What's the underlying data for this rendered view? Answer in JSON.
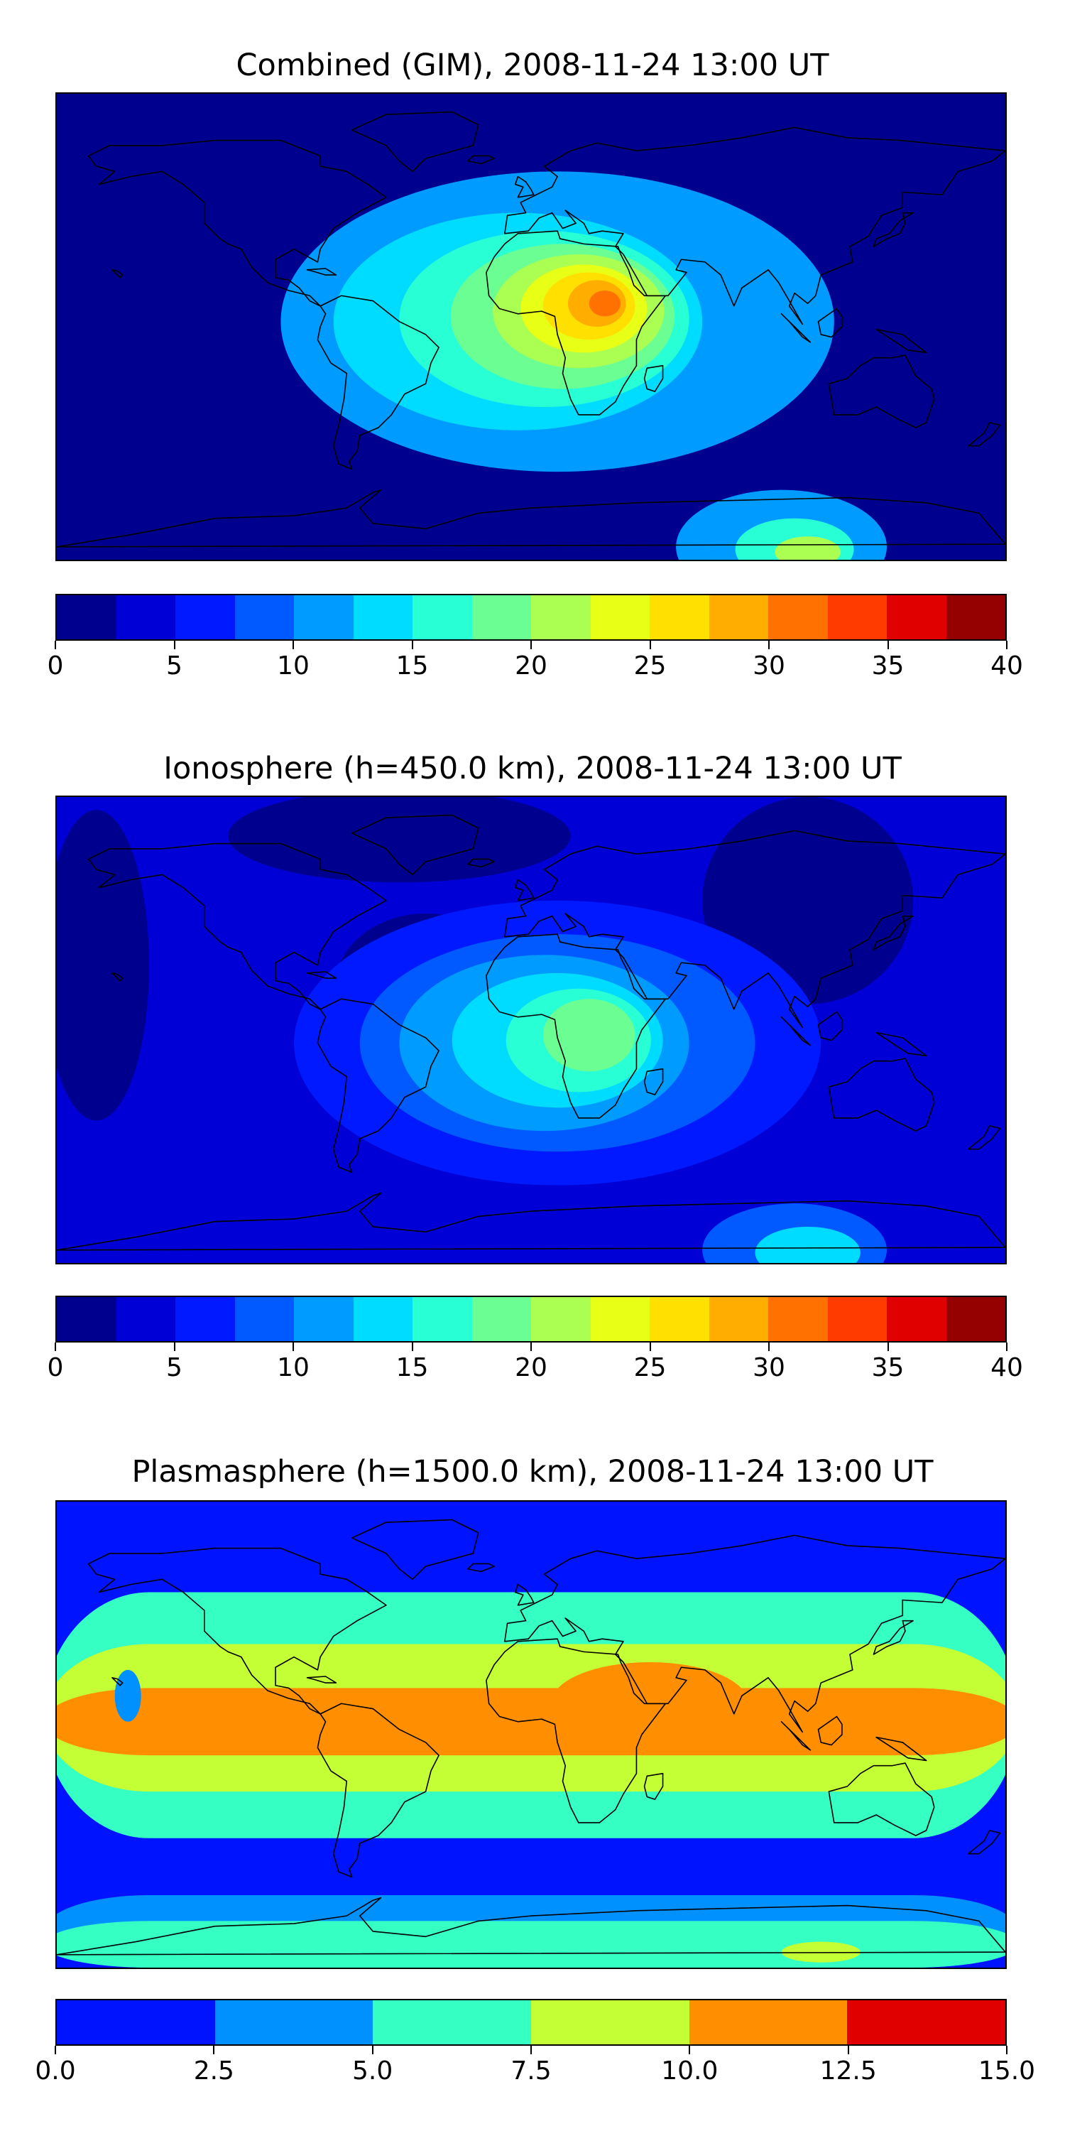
{
  "figure": {
    "panels": [
      {
        "title": "Combined (GIM), 2008-11-24 13:00 UT",
        "colorbar": {
          "levels": [
            0,
            2.5,
            5,
            7.5,
            10,
            12.5,
            15,
            17.5,
            20,
            22.5,
            25,
            27.5,
            30,
            32.5,
            35,
            37.5,
            40
          ],
          "colors": [
            "#00008f",
            "#0000d6",
            "#0019ff",
            "#005aff",
            "#009bff",
            "#00dcff",
            "#28ffd5",
            "#6bff93",
            "#abff52",
            "#e8ff16",
            "#ffe000",
            "#ffae00",
            "#ff7100",
            "#ff3b00",
            "#e10000",
            "#950000"
          ],
          "ticks": [
            "0",
            "5",
            "10",
            "15",
            "20",
            "25",
            "30",
            "35",
            "40"
          ]
        }
      },
      {
        "title": "Ionosphere  (h=450.0 km), 2008-11-24 13:00 UT",
        "colorbar": {
          "levels": [
            0,
            2.5,
            5,
            7.5,
            10,
            12.5,
            15,
            17.5,
            20,
            22.5,
            25,
            27.5,
            30,
            32.5,
            35,
            37.5,
            40
          ],
          "colors": [
            "#00008f",
            "#0000d6",
            "#0019ff",
            "#005aff",
            "#009bff",
            "#00dcff",
            "#28ffd5",
            "#6bff93",
            "#abff52",
            "#e8ff16",
            "#ffe000",
            "#ffae00",
            "#ff7100",
            "#ff3b00",
            "#e10000",
            "#950000"
          ],
          "ticks": [
            "0",
            "5",
            "10",
            "15",
            "20",
            "25",
            "30",
            "35",
            "40"
          ]
        }
      },
      {
        "title": "Plasmasphere (h=1500.0 km), 2008-11-24 13:00 UT",
        "colorbar": {
          "levels": [
            0,
            2.5,
            5,
            7.5,
            10,
            12.5,
            15
          ],
          "colors": [
            "#0013ff",
            "#0091ff",
            "#36ffc4",
            "#c4ff36",
            "#ff8f00",
            "#e00000"
          ],
          "ticks": [
            "0.0",
            "2.5",
            "5.0",
            "7.5",
            "10.0",
            "12.5",
            "15.0"
          ]
        }
      }
    ]
  },
  "chart_data": [
    {
      "type": "heatmap",
      "title": "Combined (GIM), 2008-11-24 13:00 UT",
      "projection": "plate carree, global",
      "xlabel": "",
      "ylabel": "",
      "xlim": [
        -180,
        180
      ],
      "ylim": [
        -90,
        90
      ],
      "colorbar_range": [
        0,
        40
      ],
      "colorbar_levels": [
        0,
        2.5,
        5,
        7.5,
        10,
        12.5,
        15,
        17.5,
        20,
        22.5,
        25,
        27.5,
        30,
        32.5,
        35,
        37.5,
        40
      ],
      "colorbar_ticks": [
        "0",
        "5",
        "10",
        "15",
        "20",
        "25",
        "30",
        "35",
        "40"
      ],
      "field": {
        "background_level": 2,
        "blobs": [
          {
            "lon": 10,
            "lat": 2,
            "rx": 210,
            "ry": 58,
            "level": 10
          },
          {
            "lon": 0,
            "lat": 2,
            "rx": 170,
            "ry": 48,
            "level": 12
          },
          {
            "lon": -5,
            "lat": 2,
            "rx": 140,
            "ry": 42,
            "level": 14
          },
          {
            "lon": 5,
            "lat": 3,
            "rx": 110,
            "ry": 34,
            "level": 16
          },
          {
            "lon": 12,
            "lat": 4,
            "rx": 85,
            "ry": 28,
            "level": 18
          },
          {
            "lon": 18,
            "lat": 6,
            "rx": 65,
            "ry": 22,
            "level": 20
          },
          {
            "lon": 20,
            "lat": 7,
            "rx": 48,
            "ry": 17,
            "level": 22.5
          },
          {
            "lon": 22,
            "lat": 8,
            "rx": 35,
            "ry": 13,
            "level": 25
          },
          {
            "lon": 25,
            "lat": 9,
            "rx": 22,
            "ry": 9,
            "level": 27.5
          },
          {
            "lon": 28,
            "lat": 9,
            "rx": 12,
            "ry": 5,
            "level": 30
          },
          {
            "lon": 95,
            "lat": -85,
            "rx": 80,
            "ry": 22,
            "level": 10
          },
          {
            "lon": 100,
            "lat": -86,
            "rx": 45,
            "ry": 12,
            "level": 15
          },
          {
            "lon": 105,
            "lat": -87,
            "rx": 25,
            "ry": 6,
            "level": 20
          }
        ]
      }
    },
    {
      "type": "heatmap",
      "title": "Ionosphere  (h=450.0 km), 2008-11-24 13:00 UT",
      "projection": "plate carree, global",
      "xlabel": "",
      "ylabel": "",
      "xlim": [
        -180,
        180
      ],
      "ylim": [
        -90,
        90
      ],
      "colorbar_range": [
        0,
        40
      ],
      "colorbar_levels": [
        0,
        2.5,
        5,
        7.5,
        10,
        12.5,
        15,
        17.5,
        20,
        22.5,
        25,
        27.5,
        30,
        32.5,
        35,
        37.5,
        40
      ],
      "colorbar_ticks": [
        "0",
        "5",
        "10",
        "15",
        "20",
        "25",
        "30",
        "35",
        "40"
      ],
      "field": {
        "background_level": 3,
        "blobs": [
          {
            "lon": 105,
            "lat": 50,
            "rx": 80,
            "ry": 40,
            "level": 1
          },
          {
            "lon": -165,
            "lat": 25,
            "rx": 40,
            "ry": 60,
            "level": 1
          },
          {
            "lon": -50,
            "lat": 75,
            "rx": 130,
            "ry": 18,
            "level": 1
          },
          {
            "lon": -40,
            "lat": 15,
            "rx": 70,
            "ry": 30,
            "level": 1
          },
          {
            "lon": 10,
            "lat": -5,
            "rx": 200,
            "ry": 55,
            "level": 6
          },
          {
            "lon": 10,
            "lat": -5,
            "rx": 150,
            "ry": 42,
            "level": 8
          },
          {
            "lon": 5,
            "lat": -5,
            "rx": 110,
            "ry": 34,
            "level": 11
          },
          {
            "lon": 10,
            "lat": -4,
            "rx": 80,
            "ry": 26,
            "level": 13
          },
          {
            "lon": 18,
            "lat": -4,
            "rx": 55,
            "ry": 20,
            "level": 16
          },
          {
            "lon": 22,
            "lat": -2,
            "rx": 35,
            "ry": 14,
            "level": 18
          },
          {
            "lon": 100,
            "lat": -85,
            "rx": 70,
            "ry": 18,
            "level": 8
          },
          {
            "lon": 105,
            "lat": -86,
            "rx": 40,
            "ry": 10,
            "level": 14
          }
        ]
      }
    },
    {
      "type": "heatmap",
      "title": "Plasmasphere (h=1500.0 km), 2008-11-24 13:00 UT",
      "projection": "plate carree, global",
      "xlabel": "",
      "ylabel": "",
      "xlim": [
        -180,
        180
      ],
      "ylim": [
        -90,
        90
      ],
      "colorbar_range": [
        0,
        15
      ],
      "colorbar_levels": [
        0,
        2.5,
        5,
        7.5,
        10,
        12.5,
        15
      ],
      "colorbar_ticks": [
        "0.0",
        "2.5",
        "5.0",
        "7.5",
        "10.0",
        "12.5",
        "15.0"
      ],
      "field": {
        "background_level": 1,
        "bands": [
          {
            "lat_north": 55,
            "lat_south": -40,
            "level": 6
          },
          {
            "lat_north": 35,
            "lat_south": -22,
            "level": 9
          },
          {
            "lat_north": 18,
            "lat_south": -8,
            "level": 11
          },
          {
            "lat_north": -62,
            "lat_south": -90,
            "level": 3
          },
          {
            "lat_north": -72,
            "lat_south": -90,
            "level": 6
          }
        ],
        "blobs": [
          {
            "lon": -153,
            "lat": 15,
            "rx": 10,
            "ry": 10,
            "level": 3
          },
          {
            "lon": 45,
            "lat": 12,
            "rx": 75,
            "ry": 16,
            "level": 11
          },
          {
            "lon": 110,
            "lat": -84,
            "rx": 30,
            "ry": 4,
            "level": 9
          }
        ]
      }
    }
  ]
}
